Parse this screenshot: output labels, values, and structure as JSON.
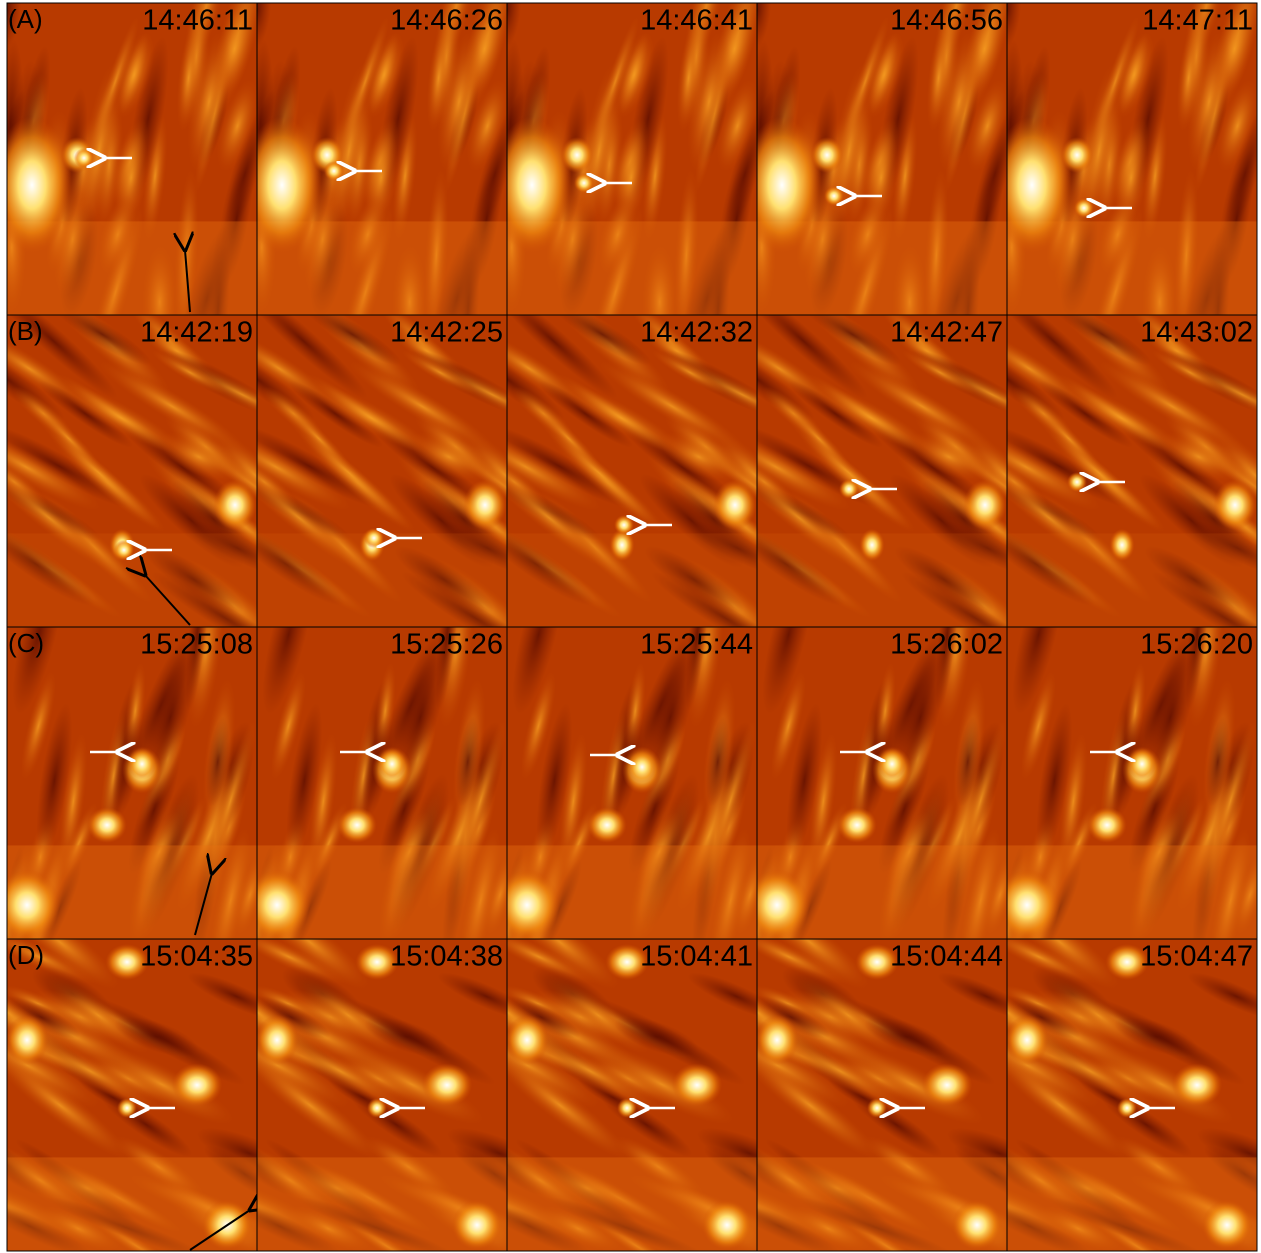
{
  "rows": [
    {
      "label": "(A)",
      "times": [
        "14:46:11",
        "14:46:26",
        "14:46:41",
        "14:46:56",
        "14:47:11"
      ]
    },
    {
      "label": "(B)",
      "times": [
        "14:42:19",
        "14:42:25",
        "14:42:32",
        "14:42:47",
        "14:43:02"
      ]
    },
    {
      "label": "(C)",
      "times": [
        "15:25:08",
        "15:25:26",
        "15:25:44",
        "15:26:02",
        "15:26:20"
      ]
    },
    {
      "label": "(D)",
      "times": [
        "15:04:35",
        "15:04:38",
        "15:04:41",
        "15:04:44",
        "15:04:47"
      ]
    }
  ]
}
